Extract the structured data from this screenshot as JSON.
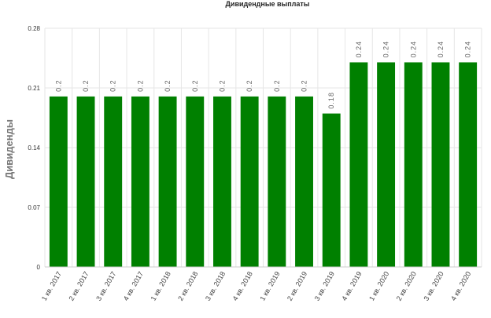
{
  "chart_data": {
    "type": "bar",
    "title": "Дивидендные выплаты",
    "xlabel": "",
    "ylabel": "Дивиденды",
    "categories": [
      "1 кв. 2017",
      "2 кв. 2017",
      "3 кв. 2017",
      "4 кв. 2017",
      "1 кв. 2018",
      "2 кв. 2018",
      "3 кв. 2018",
      "4 кв. 2018",
      "1 кв. 2019",
      "2 кв. 2019",
      "3 кв. 2019",
      "4 кв. 2019",
      "1 кв. 2020",
      "2 кв. 2020",
      "3 кв. 2020",
      "4 кв. 2020"
    ],
    "values": [
      0.2,
      0.2,
      0.2,
      0.2,
      0.2,
      0.2,
      0.2,
      0.2,
      0.2,
      0.2,
      0.18,
      0.24,
      0.24,
      0.24,
      0.24,
      0.24
    ],
    "data_labels": [
      "0.2",
      "0.2",
      "0.2",
      "0.2",
      "0.2",
      "0.2",
      "0.2",
      "0.2",
      "0.2",
      "0.2",
      "0.18",
      "0.24",
      "0.24",
      "0.24",
      "0.24",
      "0.24"
    ],
    "ylim": [
      0,
      0.28
    ],
    "yticks": [
      0,
      0.07,
      0.14,
      0.21,
      0.28
    ],
    "ytick_labels": [
      "0",
      "0.07",
      "0.14",
      "0.21",
      "0.28"
    ],
    "bar_color": "#008000",
    "grid": true,
    "legend": "none"
  }
}
